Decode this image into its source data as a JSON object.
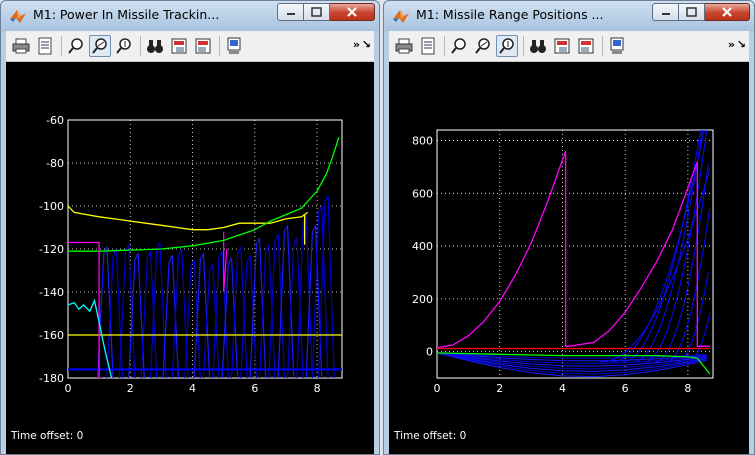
{
  "windows": [
    {
      "title": "M1: Power In Missile Trackin...",
      "status": "Time offset:  0",
      "chart_data": {
        "type": "line",
        "xlim": [
          0,
          8.8
        ],
        "ylim": [
          -180,
          -60
        ],
        "xticks": [
          "0",
          "2",
          "4",
          "6",
          "8"
        ],
        "yticks": [
          "-60",
          "-80",
          "-100",
          "-120",
          "-140",
          "-160",
          "-180"
        ],
        "grid": true,
        "series": [
          {
            "color": "#ffff00",
            "x": [
              0,
              0.2,
              0.6,
              1,
              1.5,
              2,
              2.5,
              3,
              3.5,
              4,
              4.5,
              5,
              5.5,
              6,
              6.5,
              7,
              7.5,
              7.7
            ],
            "y": [
              -100,
              -103,
              -104,
              -105,
              -106,
              -107,
              -108,
              -109,
              -110,
              -111,
              -111,
              -110,
              -108,
              -108,
              -108,
              -106,
              -105,
              -103
            ]
          },
          {
            "color": "#00ff00",
            "x": [
              0,
              1,
              2,
              3,
              4,
              5,
              5.5,
              6,
              6.5,
              7,
              7.5,
              8,
              8.3,
              8.5,
              8.7
            ],
            "y": [
              -121,
              -121,
              -120.5,
              -120,
              -118.5,
              -116,
              -113.5,
              -111,
              -107,
              -104,
              -101,
              -93,
              -85,
              -77,
              -68
            ]
          },
          {
            "color": "#ffff00",
            "x": [
              0,
              8.8
            ],
            "y": [
              -160,
              -160
            ]
          },
          {
            "color": "#ff00ff",
            "x": [
              0,
              1,
              1,
              1.1
            ],
            "y": [
              -117,
              -117,
              -180,
              -180
            ]
          },
          {
            "color": "#00ffff",
            "x": [
              0,
              0.2,
              0.35,
              0.5,
              0.7,
              0.85,
              1,
              1.2,
              1.4
            ],
            "y": [
              -146,
              -145,
              -148,
              -146,
              -149,
              -144,
              -154,
              -168,
              -180
            ]
          }
        ]
      }
    },
    {
      "title": "M1: Missile Range Positions ...",
      "status": "Time offset:  0",
      "chart_data": {
        "type": "line",
        "xlim": [
          0,
          8.8
        ],
        "ylim": [
          -100,
          840
        ],
        "xticks": [
          "0",
          "2",
          "4",
          "6",
          "8"
        ],
        "yticks": [
          "0",
          "200",
          "400",
          "600",
          "800"
        ],
        "grid": true,
        "series": [
          {
            "color": "#ff00ff",
            "x": [
              0,
              0.5,
              1,
              1.5,
              2,
              2.5,
              3,
              3.5,
              4.1,
              4.1,
              4.2,
              5,
              5.5,
              6,
              6.5,
              7,
              7.5,
              8,
              8.3,
              8.3,
              8.7
            ],
            "y": [
              15,
              25,
              60,
              115,
              190,
              290,
              410,
              560,
              760,
              20,
              20,
              35,
              80,
              150,
              240,
              340,
              460,
              620,
              720,
              20,
              20
            ]
          },
          {
            "color": "#ff0000",
            "x": [
              0,
              4.1,
              4.1,
              8.7
            ],
            "y": [
              12,
              12,
              12,
              12
            ]
          },
          {
            "color": "#00ff00",
            "x": [
              0,
              2,
              4,
              6,
              7,
              8,
              8.3,
              8.5,
              8.7
            ],
            "y": [
              -5,
              -10,
              -15,
              -15,
              -15,
              -20,
              -25,
              -55,
              -85
            ]
          }
        ]
      }
    }
  ]
}
